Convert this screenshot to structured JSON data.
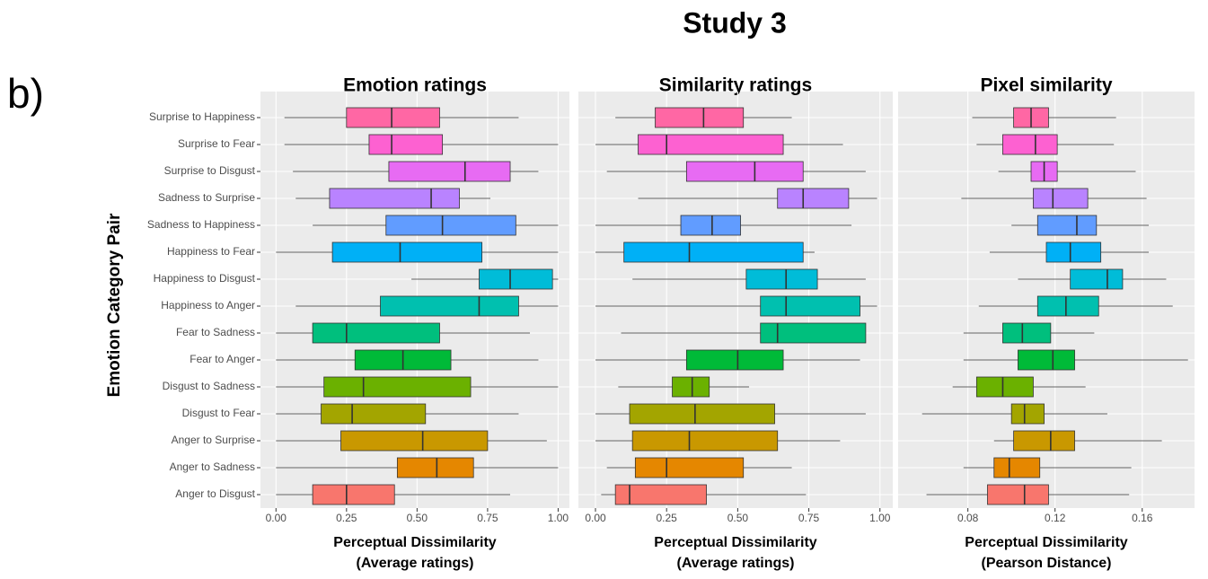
{
  "title": "Study 3",
  "panel_label": "b)",
  "y_label": "Emotion Category Pair",
  "categories": [
    "Surprise to Happiness",
    "Surprise to Fear",
    "Surprise to Disgust",
    "Sadness to Surprise",
    "Sadness to Happiness",
    "Happiness to Fear",
    "Happiness to Disgust",
    "Happiness to Anger",
    "Fear to Sadness",
    "Fear to Anger",
    "Disgust to Sadness",
    "Disgust to Fear",
    "Anger to Surprise",
    "Anger to Sadness",
    "Anger to Disgust"
  ],
  "colors": [
    "#FF67A4",
    "#FD61D1",
    "#E76BF3",
    "#B983FF",
    "#619CFF",
    "#00B0F6",
    "#00BCD8",
    "#00C0AF",
    "#00BF7D",
    "#00BA38",
    "#6BB100",
    "#A3A500",
    "#C99800",
    "#E58700",
    "#F8766D"
  ],
  "chart_data": [
    {
      "type": "boxplot",
      "title": "Emotion ratings",
      "x_label": [
        "Perceptual Dissimilarity",
        "(Average ratings)"
      ],
      "xlim": [
        -0.055,
        1.04
      ],
      "xticks": [
        {
          "value": 0,
          "label": "0.00"
        },
        {
          "value": 0.25,
          "label": "0.25"
        },
        {
          "value": 0.5,
          "label": "0.50"
        },
        {
          "value": 0.75,
          "label": "0.75"
        },
        {
          "value": 1,
          "label": "1.00"
        }
      ],
      "boxes": [
        [
          0.03,
          0.25,
          0.41,
          0.58,
          0.86
        ],
        [
          0.03,
          0.33,
          0.41,
          0.59,
          1.0
        ],
        [
          0.06,
          0.4,
          0.67,
          0.83,
          0.93
        ],
        [
          0.07,
          0.19,
          0.55,
          0.65,
          0.76
        ],
        [
          0.13,
          0.39,
          0.59,
          0.85,
          1.0
        ],
        [
          0.0,
          0.2,
          0.44,
          0.73,
          1.0
        ],
        [
          0.48,
          0.72,
          0.83,
          0.98,
          1.0
        ],
        [
          0.07,
          0.37,
          0.72,
          0.86,
          1.0
        ],
        [
          0.0,
          0.13,
          0.25,
          0.58,
          0.9
        ],
        [
          0.0,
          0.28,
          0.45,
          0.62,
          0.93
        ],
        [
          0.0,
          0.17,
          0.31,
          0.69,
          1.0
        ],
        [
          0.0,
          0.16,
          0.27,
          0.53,
          0.86
        ],
        [
          0.0,
          0.23,
          0.52,
          0.75,
          0.96
        ],
        [
          0.0,
          0.43,
          0.57,
          0.7,
          1.0
        ],
        [
          0.0,
          0.13,
          0.25,
          0.42,
          0.83
        ]
      ]
    },
    {
      "type": "boxplot",
      "title": "Similarity ratings",
      "x_label": [
        "Perceptual Dissimilarity",
        "(Average ratings)"
      ],
      "xlim": [
        -0.06,
        1.045
      ],
      "xticks": [
        {
          "value": 0,
          "label": "0.00"
        },
        {
          "value": 0.25,
          "label": "0.25"
        },
        {
          "value": 0.5,
          "label": "0.50"
        },
        {
          "value": 0.75,
          "label": "0.75"
        },
        {
          "value": 1,
          "label": "1.00"
        }
      ],
      "boxes": [
        [
          0.07,
          0.21,
          0.38,
          0.52,
          0.69
        ],
        [
          0.0,
          0.15,
          0.25,
          0.66,
          0.87
        ],
        [
          0.04,
          0.32,
          0.56,
          0.73,
          0.95
        ],
        [
          0.15,
          0.64,
          0.73,
          0.89,
          0.99
        ],
        [
          0.0,
          0.3,
          0.41,
          0.51,
          0.9
        ],
        [
          0.0,
          0.1,
          0.33,
          0.73,
          0.77
        ],
        [
          0.13,
          0.53,
          0.67,
          0.78,
          0.95
        ],
        [
          0.0,
          0.58,
          0.67,
          0.93,
          0.99
        ],
        [
          0.09,
          0.58,
          0.64,
          0.95,
          0.95
        ],
        [
          0.0,
          0.32,
          0.5,
          0.66,
          0.93
        ],
        [
          0.08,
          0.27,
          0.34,
          0.4,
          0.54
        ],
        [
          0.0,
          0.12,
          0.35,
          0.63,
          0.95
        ],
        [
          0.0,
          0.13,
          0.33,
          0.64,
          0.86
        ],
        [
          0.04,
          0.14,
          0.25,
          0.52,
          0.69
        ],
        [
          0.02,
          0.07,
          0.12,
          0.39,
          0.74
        ]
      ]
    },
    {
      "type": "boxplot",
      "title": "Pixel similarity",
      "x_label": [
        "Perceptual Dissimilarity",
        "(Pearson Distance)"
      ],
      "xlim": [
        0.048,
        0.184
      ],
      "xticks": [
        0.08,
        0.12,
        0.16
      ],
      "boxes": [
        [
          0.082,
          0.101,
          0.109,
          0.117,
          0.148
        ],
        [
          0.084,
          0.096,
          0.111,
          0.121,
          0.147
        ],
        [
          0.094,
          0.109,
          0.115,
          0.121,
          0.157
        ],
        [
          0.077,
          0.11,
          0.119,
          0.135,
          0.162
        ],
        [
          0.1,
          0.112,
          0.13,
          0.139,
          0.163
        ],
        [
          0.09,
          0.116,
          0.127,
          0.141,
          0.163
        ],
        [
          0.103,
          0.127,
          0.144,
          0.151,
          0.171
        ],
        [
          0.085,
          0.112,
          0.125,
          0.14,
          0.174
        ],
        [
          0.078,
          0.096,
          0.105,
          0.118,
          0.138
        ],
        [
          0.078,
          0.103,
          0.119,
          0.129,
          0.181
        ],
        [
          0.073,
          0.084,
          0.096,
          0.11,
          0.134
        ],
        [
          0.059,
          0.1,
          0.106,
          0.115,
          0.144
        ],
        [
          0.092,
          0.101,
          0.118,
          0.129,
          0.169
        ],
        [
          0.078,
          0.092,
          0.099,
          0.113,
          0.155
        ],
        [
          0.061,
          0.089,
          0.106,
          0.117,
          0.154
        ]
      ]
    }
  ]
}
